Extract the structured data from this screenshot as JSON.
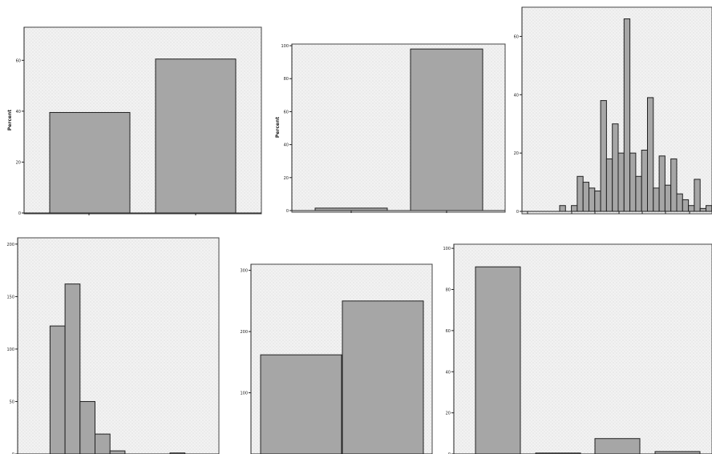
{
  "chart_data": [
    {
      "id": "c1",
      "type": "bar",
      "categories": [
        "",
        ""
      ],
      "values": [
        39.5,
        60.5
      ],
      "ylabel": "Percent",
      "ylim": [
        0,
        73
      ],
      "yticks": [
        0,
        20,
        40,
        60
      ],
      "grid": false
    },
    {
      "id": "c2",
      "type": "bar",
      "categories": [
        "",
        ""
      ],
      "values": [
        1.5,
        98
      ],
      "ylabel": "Percent",
      "ylim": [
        0,
        101
      ],
      "yticks": [
        0,
        20,
        40,
        60,
        80,
        100
      ],
      "grid": false
    },
    {
      "id": "c3",
      "type": "histogram",
      "values": [
        2,
        0,
        2,
        12,
        10,
        8,
        7,
        38,
        18,
        30,
        20,
        66,
        20,
        12,
        21,
        39,
        8,
        19,
        9,
        18,
        6,
        4,
        2,
        11,
        1,
        2
      ],
      "ylabel": "",
      "ylim": [
        0,
        70
      ],
      "yticks": [
        0,
        20,
        40,
        60
      ],
      "grid": false
    },
    {
      "id": "c4",
      "type": "histogram",
      "values": [
        0,
        0,
        122,
        162,
        50,
        19,
        3,
        0,
        0,
        0,
        1,
        0,
        0
      ],
      "ylabel": "",
      "ylim": [
        0,
        206
      ],
      "yticks": [
        0,
        50,
        100,
        150,
        200
      ],
      "grid": false
    },
    {
      "id": "c5",
      "type": "bar",
      "categories": [
        "",
        ""
      ],
      "values": [
        162,
        250
      ],
      "ylabel": "",
      "ylim": [
        0,
        310
      ],
      "yticks": [
        100,
        200,
        300
      ],
      "grid": false
    },
    {
      "id": "c6",
      "type": "bar",
      "categories": [
        "",
        "",
        "",
        ""
      ],
      "values": [
        91,
        0.3,
        7.5,
        1.2
      ],
      "ylabel": "",
      "ylim": [
        0,
        102
      ],
      "yticks": [
        0,
        20,
        40,
        60,
        80,
        100
      ],
      "grid": false
    }
  ]
}
